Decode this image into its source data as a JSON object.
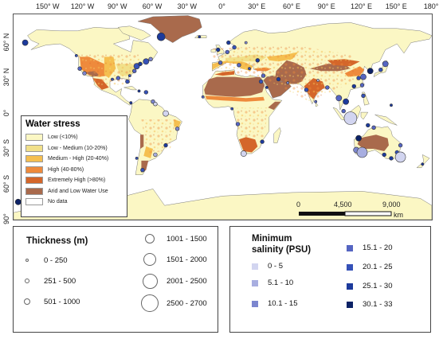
{
  "longitude_ticks": [
    {
      "label": "150° W",
      "lon": -150
    },
    {
      "label": "120° W",
      "lon": -120
    },
    {
      "label": "90° W",
      "lon": -90
    },
    {
      "label": "60° W",
      "lon": -60
    },
    {
      "label": "30° W",
      "lon": -30
    },
    {
      "label": "0°",
      "lon": 0
    },
    {
      "label": "30° E",
      "lon": 30
    },
    {
      "label": "60° E",
      "lon": 60
    },
    {
      "label": "90° E",
      "lon": 90
    },
    {
      "label": "120° E",
      "lon": 120
    },
    {
      "label": "150° E",
      "lon": 150
    },
    {
      "label": "180°",
      "lon": 180
    }
  ],
  "latitude_ticks": [
    {
      "label": "60° N",
      "lat": 60
    },
    {
      "label": "30° N",
      "lat": 30
    },
    {
      "label": "0°",
      "lat": 0
    },
    {
      "label": "30° S",
      "lat": -30
    },
    {
      "label": "60° S",
      "lat": -60
    },
    {
      "label": "90°",
      "lat": -90
    }
  ],
  "water_stress_legend": {
    "title": "Water stress",
    "items": [
      {
        "label": "Low (<10%)",
        "color": "#fbf7c4"
      },
      {
        "label": "Low - Medium (10-20%)",
        "color": "#f1e08a"
      },
      {
        "label": "Medium - High (20-40%)",
        "color": "#f5bf50"
      },
      {
        "label": "High (40-80%)",
        "color": "#ee8a3c"
      },
      {
        "label": "Extremely High (>80%)",
        "color": "#d4662a"
      },
      {
        "label": "Arid and Low Water Use",
        "color": "#a96a4c"
      },
      {
        "label": "No data",
        "color": "#ffffff"
      }
    ]
  },
  "scale_bar": {
    "labels": [
      "0",
      "4,500",
      "9,000"
    ],
    "unit": "km"
  },
  "thickness_legend": {
    "title": "Thickness (m)",
    "items": [
      {
        "label": "0 - 250",
        "size": 1
      },
      {
        "label": "251 - 500",
        "size": 2
      },
      {
        "label": "501 - 1000",
        "size": 3
      },
      {
        "label": "1001 - 1500",
        "size": 4
      },
      {
        "label": "1501 - 2000",
        "size": 5
      },
      {
        "label": "2001 - 2500",
        "size": 6
      },
      {
        "label": "2500 - 2700",
        "size": 7
      }
    ]
  },
  "salinity_legend": {
    "title_line1": "Minimum",
    "title_line2": "salinity (PSU)",
    "items": [
      {
        "label": "0 - 5",
        "color": "#d2d5f0"
      },
      {
        "label": "5.1 - 10",
        "color": "#a8aee0"
      },
      {
        "label": "10.1 - 15",
        "color": "#7c86cf"
      },
      {
        "label": "15.1 - 20",
        "color": "#5565c2"
      },
      {
        "label": "20.1 - 25",
        "color": "#3551b8"
      },
      {
        "label": "25.1 - 30",
        "color": "#1c3a9c"
      },
      {
        "label": "30.1 - 33",
        "color": "#0c2266"
      }
    ]
  },
  "map_markers": [
    {
      "lon": -170,
      "lat": 60,
      "thickness": 3,
      "salinity": 6
    },
    {
      "lon": -126,
      "lat": 49,
      "thickness": 1,
      "salinity": 5
    },
    {
      "lon": -123,
      "lat": 38,
      "thickness": 2,
      "salinity": 4
    },
    {
      "lon": -119,
      "lat": 34,
      "thickness": 2,
      "salinity": 3
    },
    {
      "lon": -95,
      "lat": 29,
      "thickness": 1,
      "salinity": 5
    },
    {
      "lon": -90,
      "lat": 30,
      "thickness": 2,
      "salinity": 4
    },
    {
      "lon": -82,
      "lat": 27,
      "thickness": 2,
      "salinity": 5
    },
    {
      "lon": -80,
      "lat": 32,
      "thickness": 1,
      "salinity": 5
    },
    {
      "lon": -76,
      "lat": 36,
      "thickness": 2,
      "salinity": 4
    },
    {
      "lon": -74,
      "lat": 40,
      "thickness": 3,
      "salinity": 5
    },
    {
      "lon": -71,
      "lat": 42,
      "thickness": 2,
      "salinity": 6
    },
    {
      "lon": -66,
      "lat": 44,
      "thickness": 3,
      "salinity": 5
    },
    {
      "lon": -62,
      "lat": 46,
      "thickness": 2,
      "salinity": 3
    },
    {
      "lon": -66,
      "lat": 18,
      "thickness": 2,
      "salinity": 5
    },
    {
      "lon": -72,
      "lat": 19,
      "thickness": 1,
      "salinity": 6
    },
    {
      "lon": -79,
      "lat": 9,
      "thickness": 1,
      "salinity": 6
    },
    {
      "lon": -60,
      "lat": 10,
      "thickness": 2,
      "salinity": 3
    },
    {
      "lon": -58,
      "lat": 8,
      "thickness": 2,
      "salinity": 1
    },
    {
      "lon": -49,
      "lat": 0,
      "thickness": 3,
      "salinity": 1
    },
    {
      "lon": -39,
      "lat": -13,
      "thickness": 2,
      "salinity": 3
    },
    {
      "lon": -49,
      "lat": -27,
      "thickness": 2,
      "salinity": 6
    },
    {
      "lon": -58,
      "lat": -35,
      "thickness": 2,
      "salinity": 2
    },
    {
      "lon": -53,
      "lat": 65,
      "thickness": 4,
      "salinity": 6
    },
    {
      "lon": -20,
      "lat": 65,
      "thickness": 1,
      "salinity": 6
    },
    {
      "lon": 5,
      "lat": 60,
      "thickness": 2,
      "salinity": 6
    },
    {
      "lon": 10,
      "lat": 56,
      "thickness": 2,
      "salinity": 5
    },
    {
      "lon": 4,
      "lat": 52,
      "thickness": 2,
      "salinity": 4
    },
    {
      "lon": 20,
      "lat": 60,
      "thickness": 1,
      "salinity": 3
    },
    {
      "lon": -4,
      "lat": 54,
      "thickness": 2,
      "salinity": 6
    },
    {
      "lon": -2,
      "lat": 43,
      "thickness": 2,
      "salinity": 4
    },
    {
      "lon": 14,
      "lat": 41,
      "thickness": 2,
      "salinity": 4
    },
    {
      "lon": 23,
      "lat": 38,
      "thickness": 1,
      "salinity": 5
    },
    {
      "lon": 30,
      "lat": 45,
      "thickness": 2,
      "salinity": 6
    },
    {
      "lon": 35,
      "lat": 32,
      "thickness": 2,
      "salinity": 4
    },
    {
      "lon": 33,
      "lat": 27,
      "thickness": 2,
      "salinity": 5
    },
    {
      "lon": 38,
      "lat": 22,
      "thickness": 1,
      "salinity": 6
    },
    {
      "lon": 48,
      "lat": 29,
      "thickness": 2,
      "salinity": 6
    },
    {
      "lon": 56,
      "lat": 26,
      "thickness": 1,
      "salinity": 3
    },
    {
      "lon": 72,
      "lat": 20,
      "thickness": 2,
      "salinity": 5
    },
    {
      "lon": 80,
      "lat": 10,
      "thickness": 1,
      "salinity": 4
    },
    {
      "lon": 82,
      "lat": 28,
      "thickness": 1,
      "salinity": 2
    },
    {
      "lon": 90,
      "lat": 22,
      "thickness": 2,
      "salinity": 4
    },
    {
      "lon": 100,
      "lat": 13,
      "thickness": 3,
      "salinity": 4
    },
    {
      "lon": 106,
      "lat": 10,
      "thickness": 3,
      "salinity": 6
    },
    {
      "lon": 104,
      "lat": 2,
      "thickness": 2,
      "salinity": 4
    },
    {
      "lon": 110,
      "lat": -4,
      "thickness": 6,
      "salinity": 1
    },
    {
      "lon": 117,
      "lat": 30,
      "thickness": 2,
      "salinity": 5
    },
    {
      "lon": 121,
      "lat": 31,
      "thickness": 3,
      "salinity": 4
    },
    {
      "lon": 113,
      "lat": 23,
      "thickness": 2,
      "salinity": 6
    },
    {
      "lon": 120,
      "lat": 24,
      "thickness": 2,
      "salinity": 4
    },
    {
      "lon": 121,
      "lat": 15,
      "thickness": 2,
      "salinity": 5
    },
    {
      "lon": 127,
      "lat": 36,
      "thickness": 3,
      "salinity": 7
    },
    {
      "lon": 136,
      "lat": 37,
      "thickness": 2,
      "salinity": 5
    },
    {
      "lon": 140,
      "lat": 42,
      "thickness": 3,
      "salinity": 4
    },
    {
      "lon": 145,
      "lat": 7,
      "thickness": 1,
      "salinity": 6
    },
    {
      "lon": 125,
      "lat": -10,
      "thickness": 2,
      "salinity": 6
    },
    {
      "lon": 117,
      "lat": -21,
      "thickness": 3,
      "salinity": 7
    },
    {
      "lon": 115,
      "lat": -31,
      "thickness": 3,
      "salinity": 3
    },
    {
      "lon": 120,
      "lat": -33,
      "thickness": 5,
      "salinity": 2
    },
    {
      "lon": 130,
      "lat": -12,
      "thickness": 2,
      "salinity": 4
    },
    {
      "lon": 139,
      "lat": -35,
      "thickness": 2,
      "salinity": 6
    },
    {
      "lon": 145,
      "lat": -38,
      "thickness": 2,
      "salinity": 6
    },
    {
      "lon": 150,
      "lat": -33,
      "thickness": 2,
      "salinity": 5
    },
    {
      "lon": 153,
      "lat": -27,
      "thickness": 2,
      "salinity": 4
    },
    {
      "lon": 153,
      "lat": -37,
      "thickness": 5,
      "salinity": 1
    },
    {
      "lon": 172,
      "lat": -43,
      "thickness": 1,
      "salinity": 6
    },
    {
      "lon": 18,
      "lat": -34,
      "thickness": 3,
      "salinity": 1
    },
    {
      "lon": 34,
      "lat": -24,
      "thickness": 2,
      "salinity": 6
    },
    {
      "lon": 13,
      "lat": -9,
      "thickness": 2,
      "salinity": 4
    },
    {
      "lon": 8,
      "lat": 4,
      "thickness": 1,
      "salinity": 5
    },
    {
      "lon": -17,
      "lat": 14,
      "thickness": 1,
      "salinity": 4
    },
    {
      "lon": -69,
      "lat": -48,
      "thickness": 2,
      "salinity": 5
    },
    {
      "lon": -74,
      "lat": -38,
      "thickness": 1,
      "salinity": 5
    },
    {
      "lon": -176,
      "lat": -75,
      "thickness": 3,
      "salinity": 7
    }
  ]
}
